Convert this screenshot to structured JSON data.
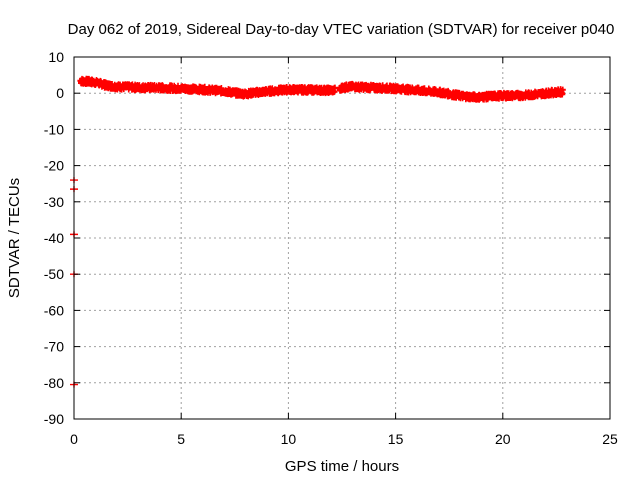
{
  "chart_data": {
    "type": "scatter",
    "title": "Day 062 of 2019, Sidereal Day-to-day VTEC variation (SDTVAR) for receiver p040",
    "xlabel": "GPS time / hours",
    "ylabel": "SDTVAR / TECUs",
    "xlim": [
      0,
      25
    ],
    "ylim": [
      -90,
      10
    ],
    "x_ticks": [
      0,
      5,
      10,
      15,
      20,
      25
    ],
    "y_ticks": [
      10,
      0,
      -10,
      -20,
      -30,
      -40,
      -50,
      -60,
      -70,
      -80,
      -90
    ],
    "grid": true,
    "marker": "plus",
    "color": "#ff0000",
    "series": [
      {
        "name": "SDTVAR",
        "trend": [
          [
            0.3,
            3.4
          ],
          [
            1.0,
            3.0
          ],
          [
            1.5,
            2.2
          ],
          [
            2.0,
            1.8
          ],
          [
            3.0,
            1.6
          ],
          [
            4.0,
            1.5
          ],
          [
            5.0,
            1.3
          ],
          [
            6.0,
            1.0
          ],
          [
            7.0,
            0.6
          ],
          [
            7.5,
            0.1
          ],
          [
            8.0,
            -0.2
          ],
          [
            8.5,
            0.2
          ],
          [
            9.0,
            0.5
          ],
          [
            10.0,
            1.0
          ],
          [
            11.0,
            0.9
          ],
          [
            12.0,
            0.8
          ],
          [
            12.4,
            0.9
          ],
          [
            12.5,
            1.6
          ],
          [
            13.0,
            1.8
          ],
          [
            14.0,
            1.5
          ],
          [
            15.0,
            1.3
          ],
          [
            16.0,
            0.8
          ],
          [
            17.0,
            0.3
          ],
          [
            18.0,
            -0.7
          ],
          [
            18.5,
            -1.0
          ],
          [
            19.0,
            -1.1
          ],
          [
            19.5,
            -0.8
          ],
          [
            20.0,
            -0.7
          ],
          [
            21.0,
            -0.6
          ],
          [
            22.0,
            0.0
          ],
          [
            22.8,
            0.4
          ]
        ],
        "gaps": [
          [
            12.2,
            12.4
          ]
        ],
        "spread": 0.8
      }
    ],
    "outliers": [
      {
        "x": 0.0,
        "y": -24.0
      },
      {
        "x": 0.0,
        "y": -26.5
      },
      {
        "x": 0.0,
        "y": -39.0
      },
      {
        "x": 0.0,
        "y": -50.0
      },
      {
        "x": 0.0,
        "y": -80.5
      }
    ]
  }
}
